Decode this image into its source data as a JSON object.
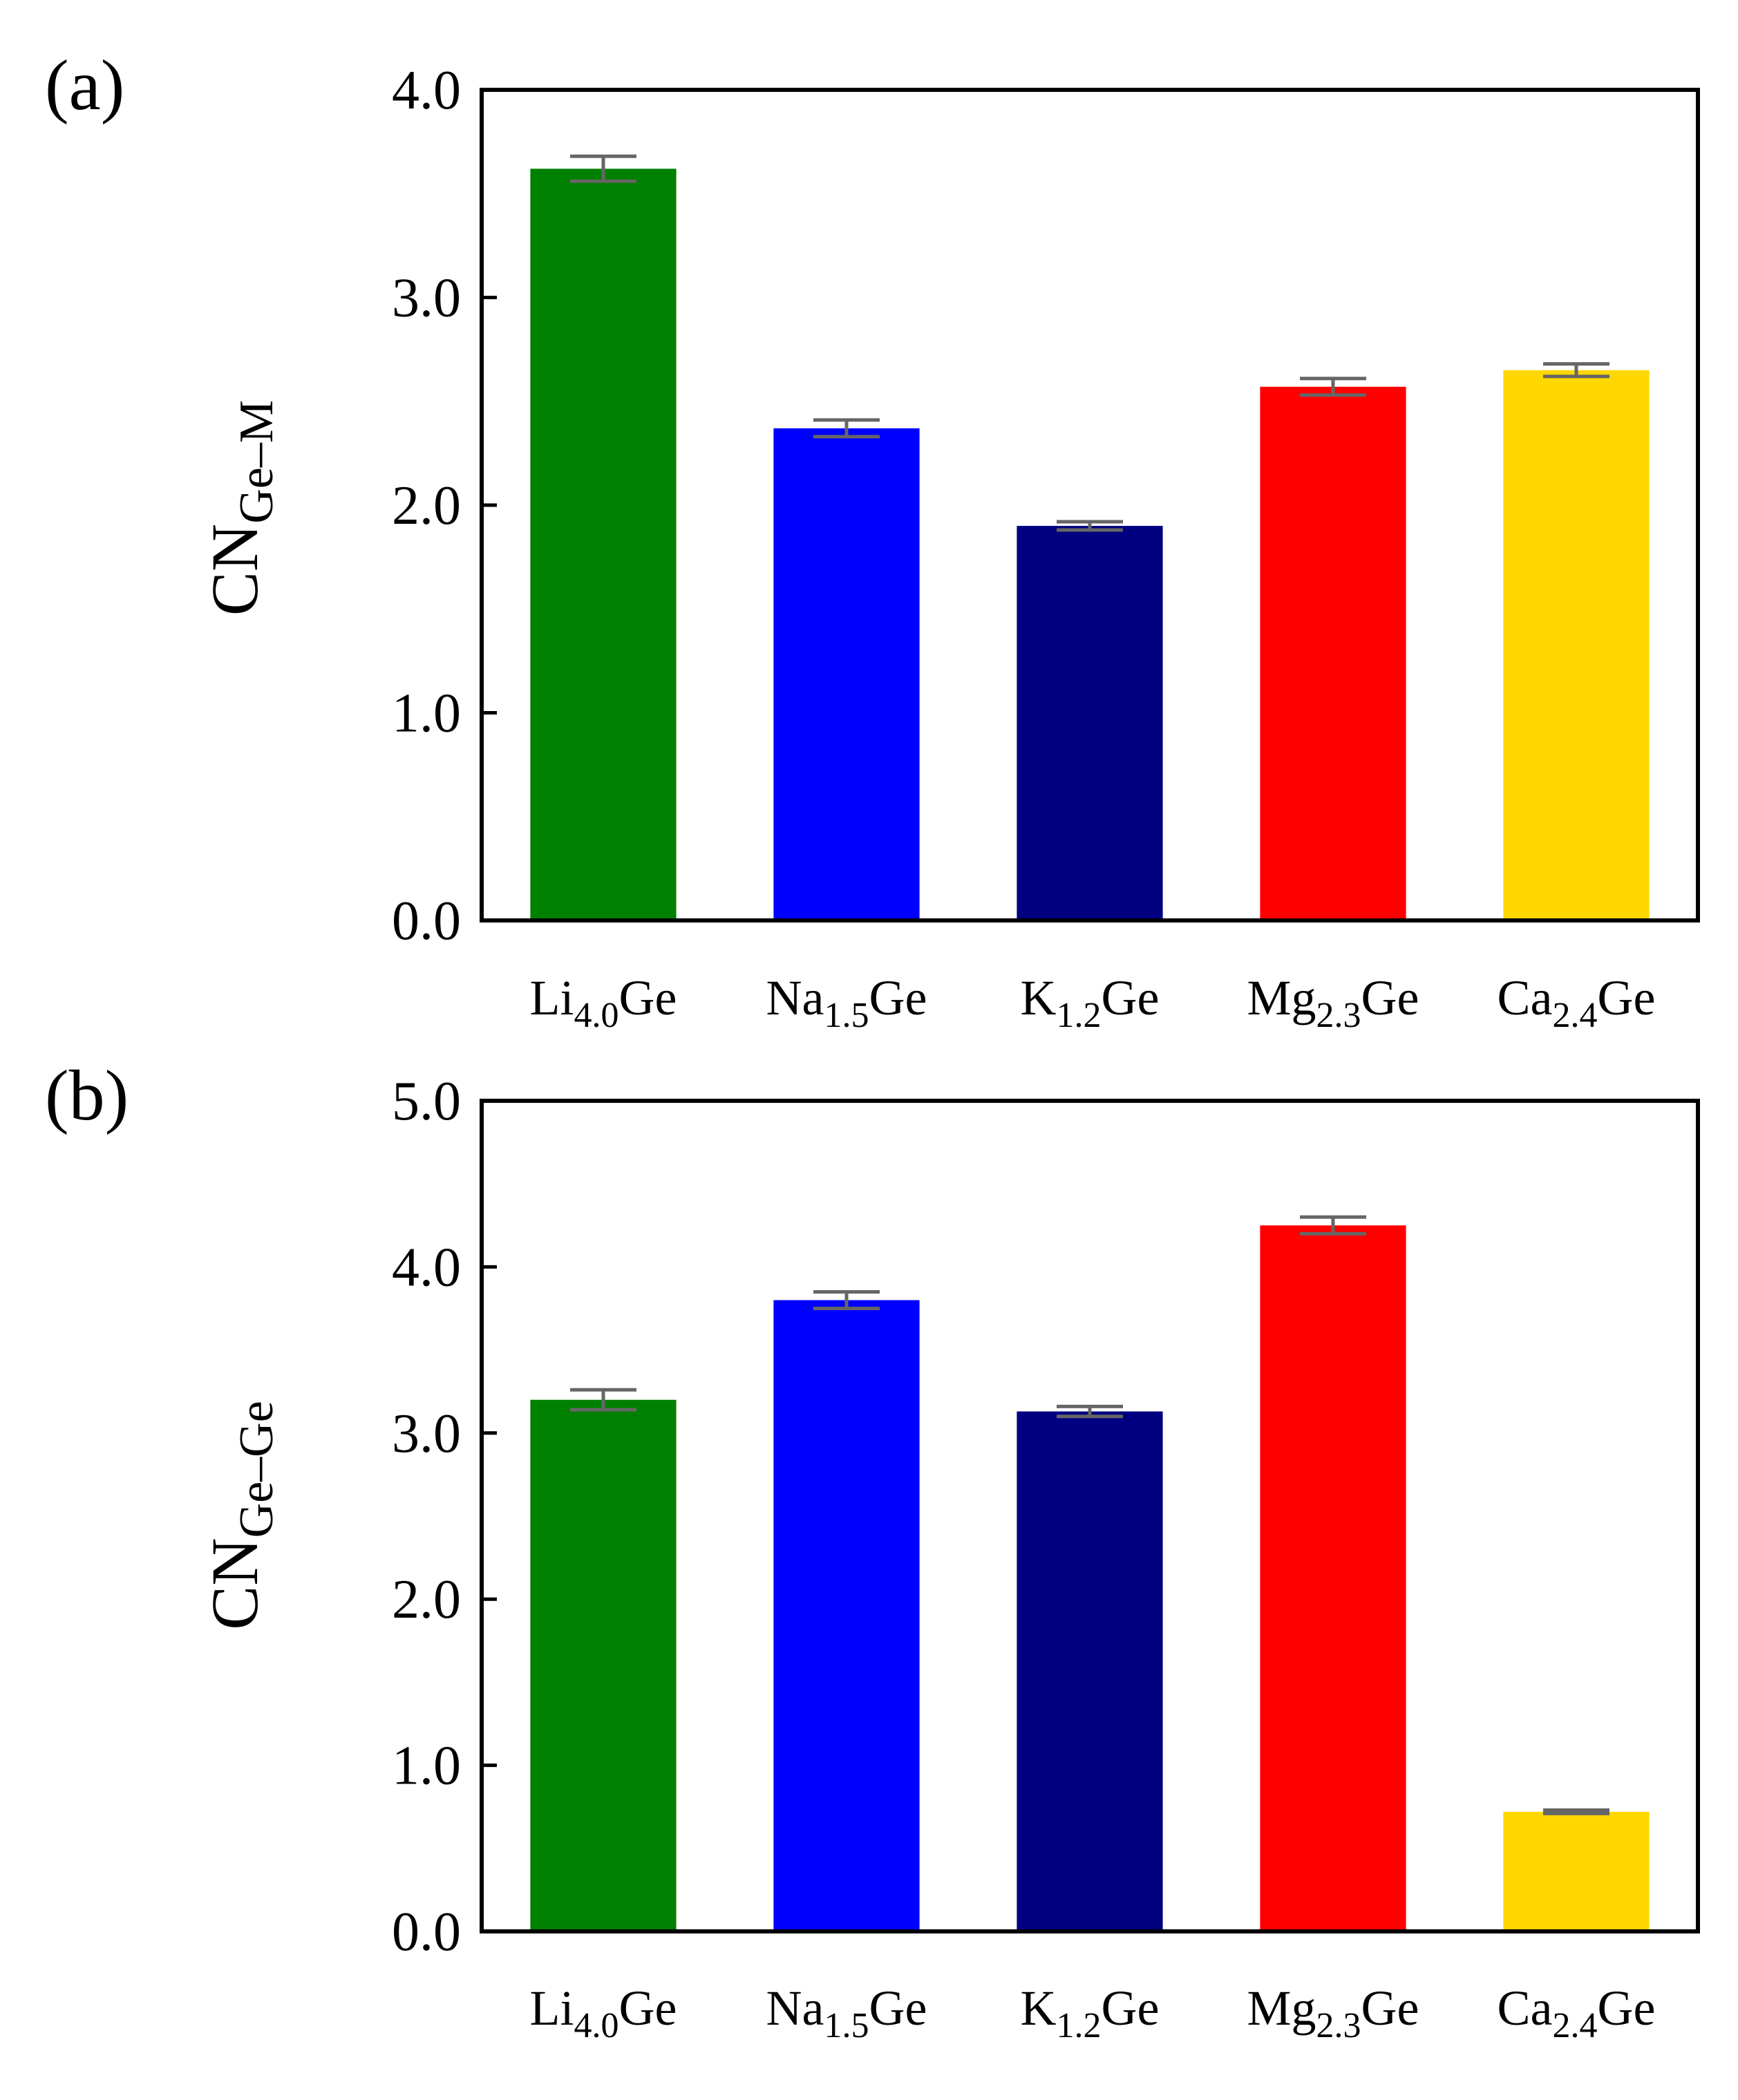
{
  "chart_data": [
    {
      "type": "bar",
      "panel_label": "(a)",
      "ylabel": {
        "main": "CN",
        "sub": "Ge–M"
      },
      "ylim": [
        0,
        4.0
      ],
      "yticks": [
        "0.0",
        "1.0",
        "2.0",
        "3.0",
        "4.0"
      ],
      "ytick_values": [
        0,
        1,
        2,
        3,
        4
      ],
      "categories": [
        {
          "base": "Li",
          "sub": "4.0",
          "tail": "Ge"
        },
        {
          "base": "Na",
          "sub": "1.5",
          "tail": "Ge"
        },
        {
          "base": "K",
          "sub": "1.2",
          "tail": "Ge"
        },
        {
          "base": "Mg",
          "sub": "2.3",
          "tail": "Ge"
        },
        {
          "base": "Ca",
          "sub": "2.4",
          "tail": "Ge"
        }
      ],
      "values": [
        3.62,
        2.37,
        1.9,
        2.57,
        2.65
      ],
      "errors": [
        0.06,
        0.04,
        0.02,
        0.04,
        0.03
      ],
      "colors": [
        "#008000",
        "#0000ff",
        "#000080",
        "#ff0000",
        "#ffd700"
      ]
    },
    {
      "type": "bar",
      "panel_label": "(b)",
      "ylabel": {
        "main": "CN",
        "sub": "Ge–Ge"
      },
      "ylim": [
        0,
        5.0
      ],
      "yticks": [
        "0.0",
        "1.0",
        "2.0",
        "3.0",
        "4.0",
        "5.0"
      ],
      "ytick_values": [
        0,
        1,
        2,
        3,
        4,
        5
      ],
      "categories": [
        {
          "base": "Li",
          "sub": "4.0",
          "tail": "Ge"
        },
        {
          "base": "Na",
          "sub": "1.5",
          "tail": "Ge"
        },
        {
          "base": "K",
          "sub": "1.2",
          "tail": "Ge"
        },
        {
          "base": "Mg",
          "sub": "2.3",
          "tail": "Ge"
        },
        {
          "base": "Ca",
          "sub": "2.4",
          "tail": "Ge"
        }
      ],
      "values": [
        3.2,
        3.8,
        3.13,
        4.25,
        0.72
      ],
      "errors": [
        0.06,
        0.05,
        0.03,
        0.05,
        0.01
      ],
      "colors": [
        "#008000",
        "#0000ff",
        "#000080",
        "#ff0000",
        "#ffd700"
      ]
    }
  ]
}
